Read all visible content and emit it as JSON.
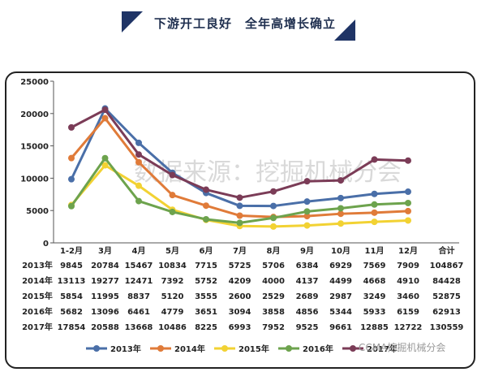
{
  "banner": {
    "title": "下游开工良好　全年高增长确立"
  },
  "watermark": "数据来源：挖掘机械分会",
  "footer_logo": "CCMA挖掘机械分会",
  "colors": {
    "s2013": "#4a6fa8",
    "s2014": "#e07b39",
    "s2015": "#f2d233",
    "s2016": "#6da34d",
    "s2017": "#7b3c57",
    "banner": "#1f3466"
  },
  "chart_data": {
    "type": "line",
    "title": "",
    "xlabel": "",
    "ylabel": "",
    "ylim": [
      0,
      25000
    ],
    "yticks": [
      "0",
      "5000",
      "10000",
      "15000",
      "20000",
      "25000"
    ],
    "categories": [
      "1-2月",
      "3月",
      "4月",
      "5月",
      "6月",
      "7月",
      "8月",
      "9月",
      "10月",
      "11月",
      "12月"
    ],
    "total_label": "合计",
    "legend_position": "bottom",
    "series": [
      {
        "name": "2013年",
        "values": [
          9845,
          20784,
          15467,
          10834,
          7715,
          5725,
          5706,
          6384,
          6929,
          7569,
          7909
        ],
        "total": 104867
      },
      {
        "name": "2014年",
        "values": [
          13113,
          19277,
          12471,
          7392,
          5752,
          4209,
          4000,
          4137,
          4499,
          4668,
          4910
        ],
        "total": 84428
      },
      {
        "name": "2015年",
        "values": [
          5854,
          11995,
          8837,
          5120,
          3555,
          2600,
          2529,
          2689,
          2987,
          3249,
          3460
        ],
        "total": 52875
      },
      {
        "name": "2016年",
        "values": [
          5682,
          13096,
          6461,
          4779,
          3651,
          3094,
          3858,
          4856,
          5344,
          5933,
          6159
        ],
        "total": 62913
      },
      {
        "name": "2017年",
        "values": [
          17854,
          20588,
          13668,
          10486,
          8225,
          6993,
          7952,
          9525,
          9661,
          12885,
          12722
        ],
        "total": 130559
      }
    ]
  }
}
